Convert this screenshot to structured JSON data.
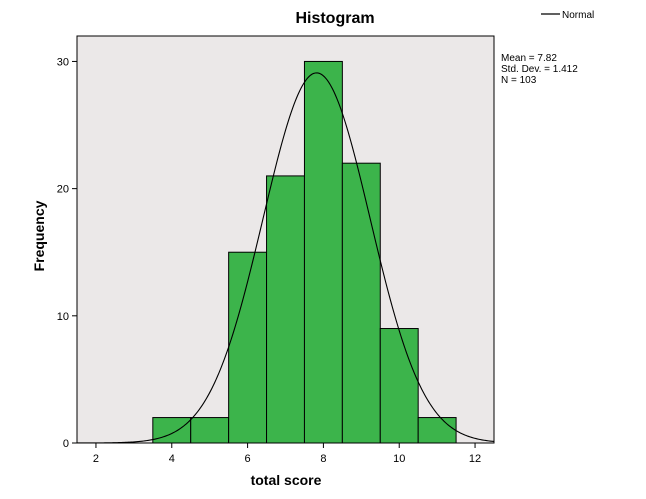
{
  "chart_data": {
    "type": "bar",
    "title": "Histogram",
    "xlabel": "total score",
    "ylabel": "Frequency",
    "xlim": [
      1.5,
      12.5
    ],
    "ylim": [
      0,
      32
    ],
    "x_ticks": [
      2,
      4,
      6,
      8,
      10,
      12
    ],
    "y_ticks": [
      0,
      10,
      20,
      30
    ],
    "bins": [
      {
        "start": 3.5,
        "end": 4.5,
        "count": 2
      },
      {
        "start": 4.5,
        "end": 5.5,
        "count": 2
      },
      {
        "start": 5.5,
        "end": 6.5,
        "count": 15
      },
      {
        "start": 6.5,
        "end": 7.5,
        "count": 21
      },
      {
        "start": 7.5,
        "end": 8.5,
        "count": 30
      },
      {
        "start": 8.5,
        "end": 9.5,
        "count": 22
      },
      {
        "start": 9.5,
        "end": 10.5,
        "count": 9
      },
      {
        "start": 10.5,
        "end": 11.5,
        "count": 2
      }
    ],
    "normal_curve": {
      "mean": 7.82,
      "sd": 1.412,
      "n": 103,
      "bin_width": 1
    },
    "legend": {
      "label": "Normal",
      "placement": "top-right"
    },
    "stats": [
      "Mean = 7.82",
      "Std. Dev. = 1.412",
      "N = 103"
    ],
    "grid": false,
    "colors": {
      "bar_fill": "#3cb44b",
      "bar_stroke": "#000000",
      "plot_background": "#ebe8e8",
      "curve": "#000000"
    }
  }
}
